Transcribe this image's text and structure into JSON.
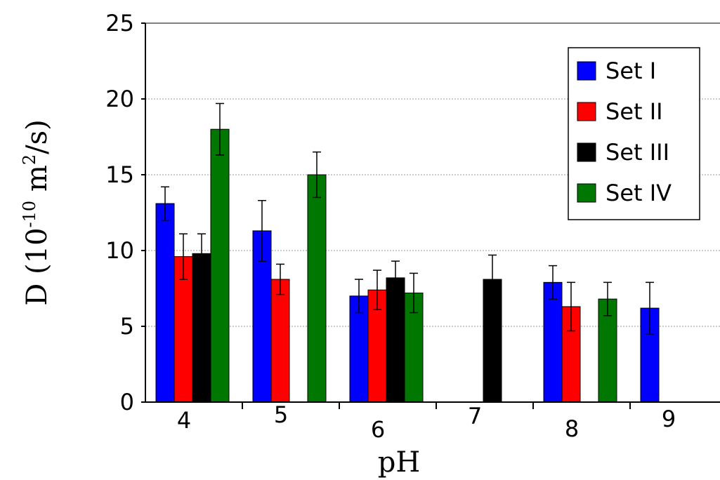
{
  "chart_data": {
    "type": "bar",
    "title": "",
    "xlabel": "pH",
    "ylabel": {
      "prefix": "D (10",
      "exponent1": "-10",
      "middle": " m",
      "exponent2": "2",
      "suffix": "/s)"
    },
    "categories": [
      "4",
      "5",
      "6",
      "7",
      "8",
      "9"
    ],
    "ylim": [
      0,
      25
    ],
    "yticks": [
      0,
      5,
      10,
      15,
      20,
      25
    ],
    "grid": "horizontal-dotted",
    "legend_position": "top-right",
    "series": [
      {
        "name": "Set I",
        "color": "#0000ff",
        "values": [
          13.1,
          11.3,
          7.0,
          null,
          7.9,
          6.2
        ],
        "errors": [
          1.1,
          2.0,
          1.1,
          null,
          1.1,
          1.7
        ]
      },
      {
        "name": "Set II",
        "color": "#ff0000",
        "values": [
          9.6,
          8.1,
          7.4,
          null,
          6.3,
          null
        ],
        "errors": [
          1.5,
          1.0,
          1.3,
          null,
          1.6,
          null
        ]
      },
      {
        "name": "Set III",
        "color": "#000000",
        "values": [
          9.8,
          null,
          8.2,
          8.1,
          null,
          null
        ],
        "errors": [
          1.3,
          null,
          1.1,
          1.6,
          null,
          null
        ]
      },
      {
        "name": "Set IV",
        "color": "#007700",
        "values": [
          18.0,
          15.0,
          7.2,
          null,
          6.8,
          null
        ],
        "errors": [
          1.7,
          1.5,
          1.3,
          null,
          1.1,
          null
        ]
      }
    ]
  }
}
